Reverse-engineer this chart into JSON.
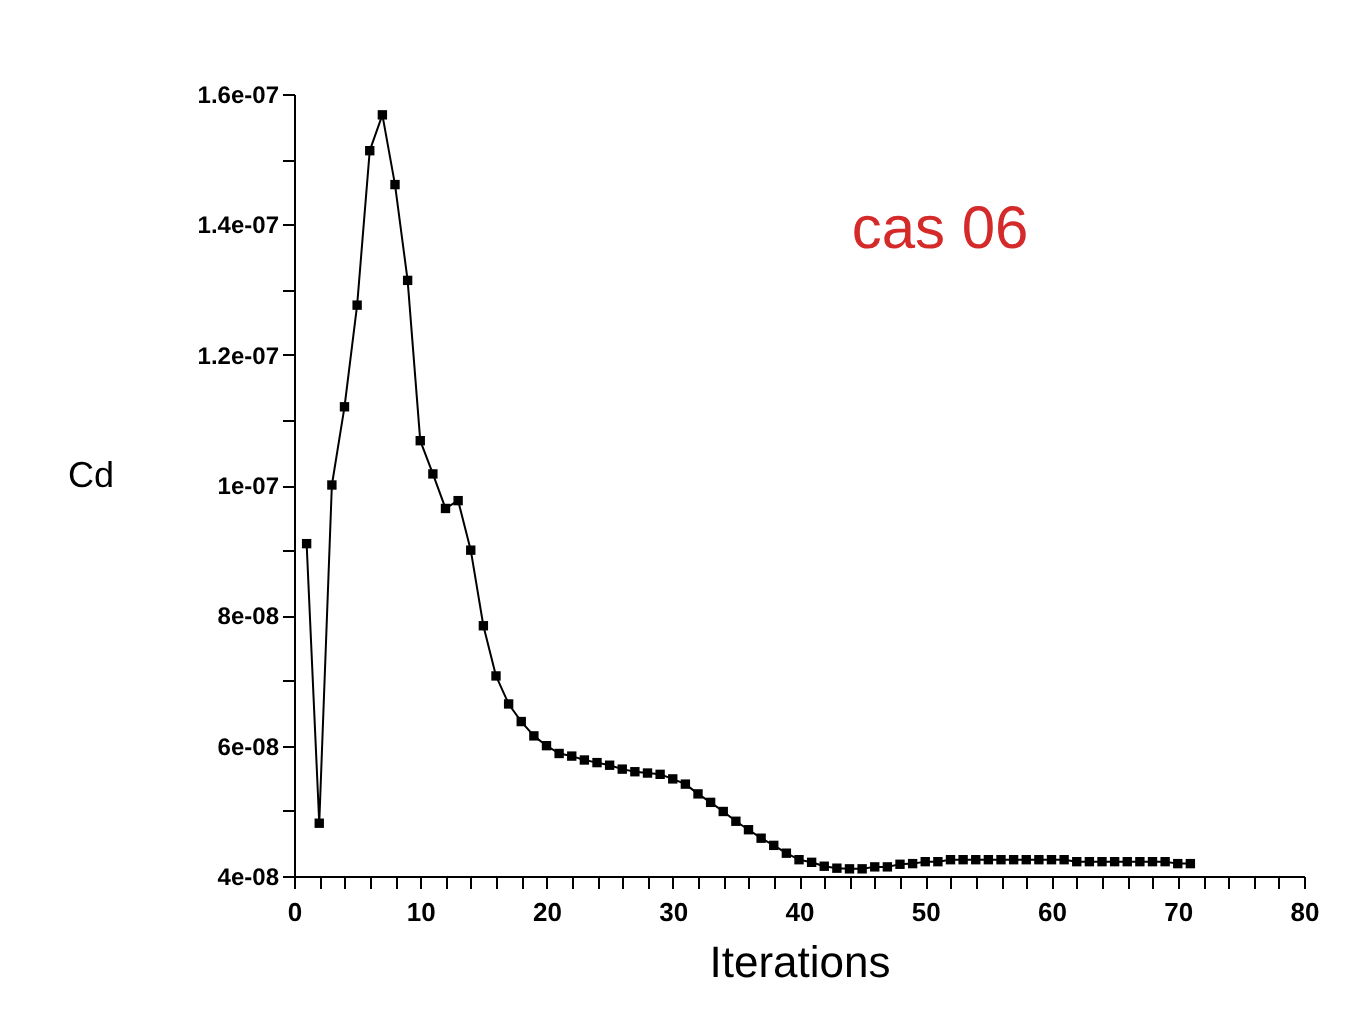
{
  "chart_data": {
    "type": "line",
    "xlabel": "Iterations",
    "ylabel": "Cd",
    "annotations": [
      "cas 06"
    ],
    "x": [
      1,
      2,
      3,
      4,
      5,
      6,
      7,
      8,
      9,
      10,
      11,
      12,
      13,
      14,
      15,
      16,
      17,
      18,
      19,
      20,
      21,
      22,
      23,
      24,
      25,
      26,
      27,
      28,
      29,
      30,
      31,
      32,
      33,
      34,
      35,
      36,
      37,
      38,
      39,
      40,
      41,
      42,
      43,
      44,
      45,
      46,
      47,
      48,
      49,
      50,
      51,
      52,
      53,
      54,
      55,
      56,
      57,
      58,
      59,
      60,
      61,
      62,
      63,
      64,
      65,
      66,
      67,
      68,
      69,
      70,
      71
    ],
    "series": [
      {
        "color": "#000000",
        "values": [
          9.1e-08,
          4.81e-08,
          1e-07,
          1.12e-07,
          1.276e-07,
          1.513e-07,
          1.568e-07,
          1.461e-07,
          1.314e-07,
          1.068e-07,
          1.017e-07,
          9.64e-08,
          9.76e-08,
          9e-08,
          7.84e-08,
          7.07e-08,
          6.64e-08,
          6.37e-08,
          6.15e-08,
          6e-08,
          5.88e-08,
          5.84e-08,
          5.78e-08,
          5.74e-08,
          5.7e-08,
          5.64e-08,
          5.6e-08,
          5.58e-08,
          5.56e-08,
          5.49e-08,
          5.41e-08,
          5.26e-08,
          5.13e-08,
          4.99e-08,
          4.84e-08,
          4.71e-08,
          4.58e-08,
          4.47e-08,
          4.35e-08,
          4.25e-08,
          4.21e-08,
          4.15e-08,
          4.12e-08,
          4.11e-08,
          4.11e-08,
          4.14e-08,
          4.14e-08,
          4.18e-08,
          4.19e-08,
          4.22e-08,
          4.22e-08,
          4.25e-08,
          4.25e-08,
          4.25e-08,
          4.25e-08,
          4.25e-08,
          4.25e-08,
          4.25e-08,
          4.25e-08,
          4.25e-08,
          4.25e-08,
          4.22e-08,
          4.22e-08,
          4.22e-08,
          4.22e-08,
          4.22e-08,
          4.22e-08,
          4.22e-08,
          4.22e-08,
          4.19e-08,
          4.19e-08
        ]
      }
    ],
    "xlim": [
      0,
      80
    ],
    "xticks": [
      0,
      {
        "value": 2,
        "label": null
      },
      {
        "value": 4,
        "label": null
      },
      {
        "value": 6,
        "label": null
      },
      {
        "value": 8,
        "label": null
      },
      10,
      {
        "value": 12,
        "label": null
      },
      {
        "value": 14,
        "label": null
      },
      {
        "value": 16,
        "label": null
      },
      {
        "value": 18,
        "label": null
      },
      20,
      {
        "value": 22,
        "label": null
      },
      {
        "value": 24,
        "label": null
      },
      {
        "value": 26,
        "label": null
      },
      {
        "value": 28,
        "label": null
      },
      30,
      {
        "value": 32,
        "label": null
      },
      {
        "value": 34,
        "label": null
      },
      {
        "value": 36,
        "label": null
      },
      {
        "value": 38,
        "label": null
      },
      40,
      {
        "value": 42,
        "label": null
      },
      {
        "value": 44,
        "label": null
      },
      {
        "value": 46,
        "label": null
      },
      {
        "value": 48,
        "label": null
      },
      50,
      {
        "value": 52,
        "label": null
      },
      {
        "value": 54,
        "label": null
      },
      {
        "value": 56,
        "label": null
      },
      {
        "value": 58,
        "label": null
      },
      60,
      {
        "value": 62,
        "label": null
      },
      {
        "value": 64,
        "label": null
      },
      {
        "value": 66,
        "label": null
      },
      {
        "value": 68,
        "label": null
      },
      70,
      {
        "value": 72,
        "label": null
      },
      {
        "value": 74,
        "label": null
      },
      {
        "value": 76,
        "label": null
      },
      {
        "value": 78,
        "label": null
      },
      80
    ],
    "ylim": [
      4e-08,
      1.6e-07
    ],
    "yticks": [
      {
        "value": 4e-08,
        "label": "4e-08"
      },
      {
        "value": 5e-08,
        "label": null
      },
      {
        "value": 6e-08,
        "label": "6e-08"
      },
      {
        "value": 7e-08,
        "label": null
      },
      {
        "value": 8e-08,
        "label": "8e-08"
      },
      {
        "value": 9e-08,
        "label": null
      },
      {
        "value": 1e-07,
        "label": "1e-07"
      },
      {
        "value": 1.1e-07,
        "label": null
      },
      {
        "value": 1.2e-07,
        "label": "1.2e-07"
      },
      {
        "value": 1.3e-07,
        "label": null
      },
      {
        "value": 1.4e-07,
        "label": "1.4e-07"
      },
      {
        "value": 1.5e-07,
        "label": null
      },
      {
        "value": 1.6e-07,
        "label": "1.6e-07"
      }
    ],
    "grid": false,
    "marker": "square",
    "line_style": "solid"
  }
}
